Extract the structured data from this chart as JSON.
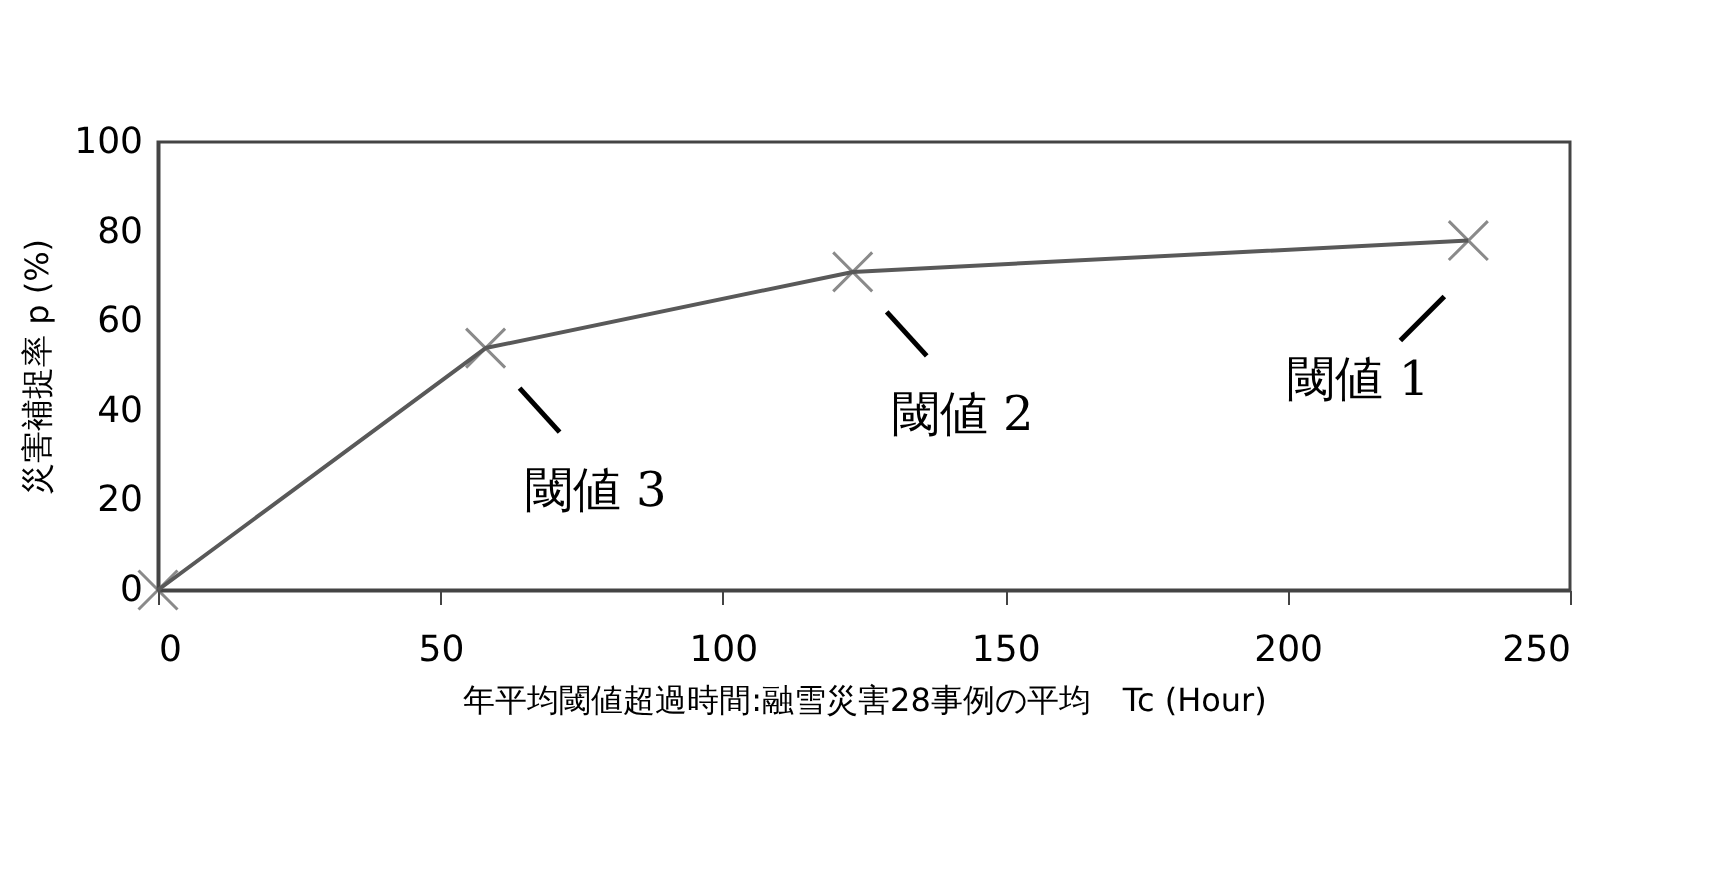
{
  "chart_data": {
    "type": "line",
    "xlabel": "年平均閾値超過時間:融雪災害28事例の平均　Tc (Hour)",
    "ylabel": "災害補捉率 p (%)",
    "x": [
      0,
      58,
      123,
      232
    ],
    "series": [
      {
        "color": "#595959",
        "values": [
          0,
          54,
          71,
          78
        ]
      }
    ],
    "xlim": [
      0,
      250
    ],
    "xticks": [
      0,
      50,
      100,
      150,
      200,
      250
    ],
    "ylim": [
      0,
      100
    ],
    "yticks": [
      0,
      20,
      40,
      60,
      80,
      100
    ],
    "grid": false,
    "marker": "cross",
    "line_style": "solid",
    "annotations": [
      {
        "text": "閾値 3",
        "x": 58,
        "y": 54
      },
      {
        "text": "閾値 2",
        "x": 123,
        "y": 71
      },
      {
        "text": "閾値 1",
        "x": 232,
        "y": 78
      }
    ]
  }
}
